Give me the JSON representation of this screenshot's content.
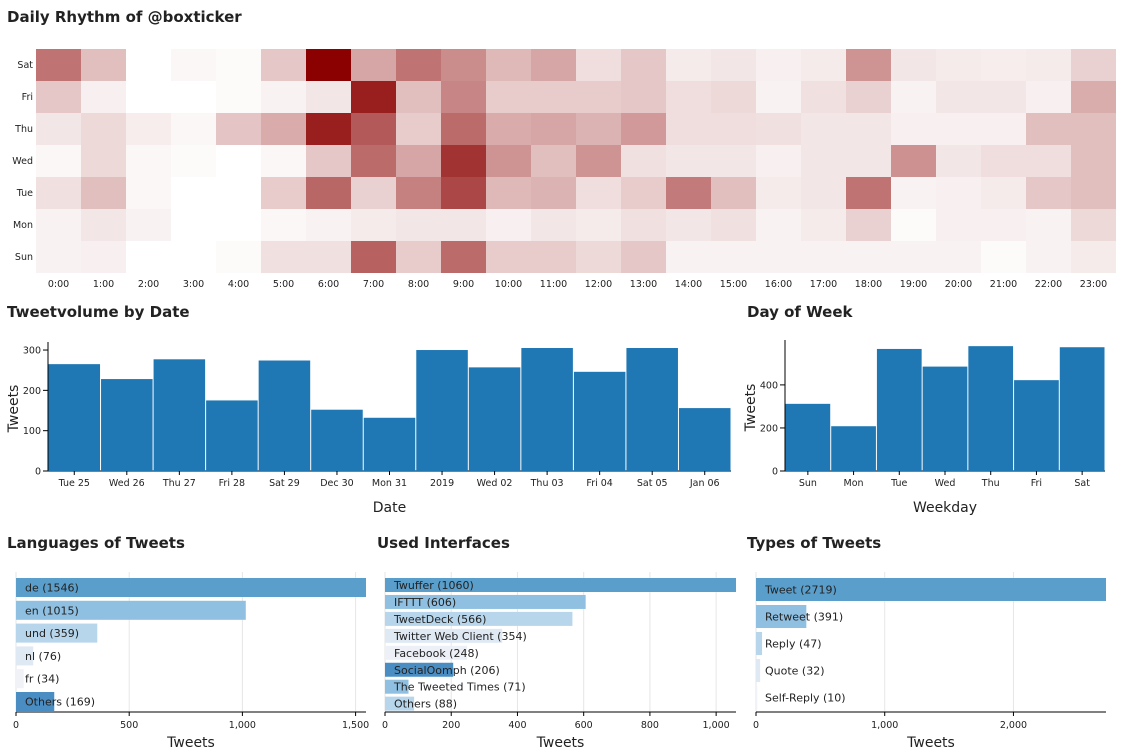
{
  "titles": {
    "heatmap": "Daily Rhythm of @boxticker",
    "volume": "Tweetvolume by Date",
    "weekday": "Day of Week",
    "languages": "Languages of Tweets",
    "interfaces": "Used Interfaces",
    "types": "Types of Tweets"
  },
  "chart_data": [
    {
      "type": "heatmap",
      "title": "Daily Rhythm of @boxticker",
      "x": [
        "0:00",
        "1:00",
        "2:00",
        "3:00",
        "4:00",
        "5:00",
        "6:00",
        "7:00",
        "8:00",
        "9:00",
        "10:00",
        "11:00",
        "12:00",
        "13:00",
        "14:00",
        "15:00",
        "16:00",
        "17:00",
        "18:00",
        "19:00",
        "20:00",
        "21:00",
        "22:00",
        "23:00"
      ],
      "y": [
        "Sat",
        "Fri",
        "Thu",
        "Wed",
        "Tue",
        "Mon",
        "Sun"
      ],
      "values": [
        [
          0.55,
          0.25,
          0.0,
          0.03,
          0.02,
          0.22,
          1.0,
          0.35,
          0.55,
          0.45,
          0.28,
          0.35,
          0.13,
          0.22,
          0.08,
          0.1,
          0.06,
          0.08,
          0.42,
          0.1,
          0.08,
          0.07,
          0.08,
          0.18
        ],
        [
          0.22,
          0.06,
          0.0,
          0.0,
          0.02,
          0.05,
          0.1,
          0.88,
          0.25,
          0.48,
          0.2,
          0.2,
          0.2,
          0.22,
          0.13,
          0.15,
          0.05,
          0.12,
          0.18,
          0.05,
          0.1,
          0.1,
          0.06,
          0.32
        ],
        [
          0.1,
          0.15,
          0.07,
          0.03,
          0.23,
          0.33,
          0.88,
          0.65,
          0.2,
          0.58,
          0.33,
          0.35,
          0.3,
          0.4,
          0.13,
          0.13,
          0.12,
          0.1,
          0.1,
          0.06,
          0.06,
          0.06,
          0.25,
          0.25
        ],
        [
          0.03,
          0.15,
          0.03,
          0.02,
          0.0,
          0.03,
          0.22,
          0.58,
          0.35,
          0.8,
          0.42,
          0.25,
          0.42,
          0.12,
          0.1,
          0.1,
          0.06,
          0.1,
          0.1,
          0.43,
          0.1,
          0.13,
          0.13,
          0.25
        ],
        [
          0.12,
          0.25,
          0.03,
          0.0,
          0.0,
          0.2,
          0.6,
          0.18,
          0.5,
          0.72,
          0.28,
          0.3,
          0.13,
          0.2,
          0.52,
          0.25,
          0.08,
          0.1,
          0.55,
          0.05,
          0.06,
          0.08,
          0.22,
          0.25
        ],
        [
          0.05,
          0.1,
          0.05,
          0.0,
          0.0,
          0.03,
          0.05,
          0.08,
          0.1,
          0.1,
          0.06,
          0.1,
          0.08,
          0.12,
          0.1,
          0.12,
          0.05,
          0.08,
          0.18,
          0.02,
          0.06,
          0.06,
          0.05,
          0.15
        ],
        [
          0.05,
          0.06,
          0.0,
          0.0,
          0.02,
          0.12,
          0.12,
          0.62,
          0.2,
          0.58,
          0.2,
          0.2,
          0.15,
          0.22,
          0.05,
          0.05,
          0.05,
          0.05,
          0.05,
          0.05,
          0.05,
          0.02,
          0.05,
          0.08
        ]
      ]
    },
    {
      "type": "bar",
      "title": "Tweetvolume by Date",
      "categories": [
        "Tue 25",
        "Wed 26",
        "Thu 27",
        "Fri 28",
        "Sat 29",
        "Dec 30",
        "Mon 31",
        "2019",
        "Wed 02",
        "Thu 03",
        "Fri 04",
        "Sat 05",
        "Jan 06"
      ],
      "values": [
        265,
        228,
        277,
        175,
        274,
        152,
        132,
        300,
        257,
        305,
        246,
        305,
        156
      ],
      "xlabel": "Date",
      "ylabel": "Tweets",
      "yticks": [
        0,
        100,
        200,
        300
      ],
      "ylim": [
        0,
        310
      ]
    },
    {
      "type": "bar",
      "title": "Day of Week",
      "categories": [
        "Sun",
        "Mon",
        "Tue",
        "Wed",
        "Thu",
        "Fri",
        "Sat"
      ],
      "values": [
        312,
        208,
        567,
        485,
        580,
        422,
        575
      ],
      "xlabel": "Weekday",
      "ylabel": "Tweets",
      "yticks": [
        0,
        200,
        400
      ],
      "ylim": [
        0,
        590
      ]
    },
    {
      "type": "bar",
      "orientation": "horizontal",
      "title": "Languages of Tweets",
      "categories": [
        "de (1546)",
        "en (1015)",
        "und (359)",
        "nl (76)",
        "fr (34)",
        "Others (169)"
      ],
      "values": [
        1546,
        1015,
        359,
        76,
        34,
        169
      ],
      "xlabel": "Tweets",
      "xticks": [
        0,
        500,
        1000,
        1500
      ],
      "xtick_labels": [
        "0",
        "500",
        "1,000",
        "1,500"
      ],
      "xlim": [
        0,
        1546
      ]
    },
    {
      "type": "bar",
      "orientation": "horizontal",
      "title": "Used Interfaces",
      "categories": [
        "Twuffer (1060)",
        "IFTTT (606)",
        "TweetDeck (566)",
        "Twitter Web Client (354)",
        "Facebook (248)",
        "SocialOomph (206)",
        "The Tweeted Times (71)",
        "Others (88)"
      ],
      "values": [
        1060,
        606,
        566,
        354,
        248,
        206,
        71,
        88
      ],
      "xlabel": "Tweets",
      "xticks": [
        0,
        200,
        400,
        600,
        800,
        1000
      ],
      "xtick_labels": [
        "0",
        "200",
        "400",
        "600",
        "800",
        "1,000"
      ],
      "xlim": [
        0,
        1060
      ]
    },
    {
      "type": "bar",
      "orientation": "horizontal",
      "title": "Types of Tweets",
      "categories": [
        "Tweet (2719)",
        "Retweet (391)",
        "Reply (47)",
        "Quote (32)",
        "Self-Reply (10)"
      ],
      "values": [
        2719,
        391,
        47,
        32,
        10
      ],
      "xlabel": "Tweets",
      "xticks": [
        0,
        1000,
        2000
      ],
      "xtick_labels": [
        "0",
        "1,000",
        "2,000"
      ],
      "xlim": [
        0,
        2719
      ]
    }
  ],
  "colors": {
    "bar": "#1f77b4",
    "heat_low": "#ffffff",
    "heat_high": "#8b0000",
    "row_palette": [
      "#4c94c9",
      "#8fc0e1",
      "#b5d4eb",
      "#dee8f3",
      "#4c94c9"
    ]
  }
}
